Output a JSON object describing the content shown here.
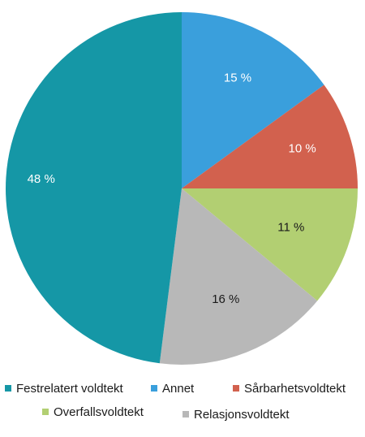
{
  "chart_data": {
    "type": "pie",
    "title": "",
    "legend_position": "bottom",
    "slices": [
      {
        "name": "Annet",
        "value": 15,
        "label": "15 %",
        "color": "#3a9fdc"
      },
      {
        "name": "Sårbarhetsvoldtekt",
        "value": 10,
        "label": "10 %",
        "color": "#d2614e"
      },
      {
        "name": "Overfallsvoldtekt",
        "value": 11,
        "label": "11 %",
        "color": "#b2cf72"
      },
      {
        "name": "Relasjonsvoldtekt",
        "value": 16,
        "label": "16 %",
        "color": "#b8b8b8"
      },
      {
        "name": "Festrelatert voldtekt",
        "value": 48,
        "label": "48 %",
        "color": "#1597a6"
      }
    ],
    "legend": [
      "Festrelatert voldtekt",
      "Annet",
      "Sårbarhetsvoldtekt",
      "Overfallsvoldtekt",
      "Relasjonsvoldtekt"
    ],
    "label_colors": {
      "dark": "#1a1a1a",
      "light": "#ffffff"
    }
  }
}
